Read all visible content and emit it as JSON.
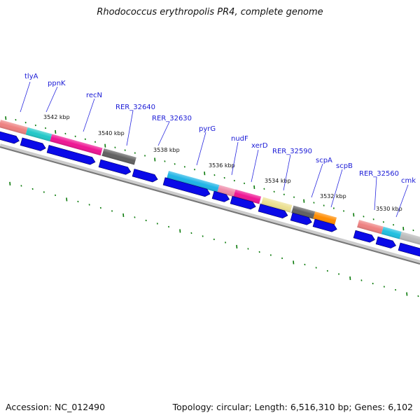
{
  "title": "Rhodococcus erythropolis PR4, complete genome",
  "footer": {
    "accession": "Accession: NC_012490",
    "stats": "Topology: circular; Length: 6,516,310 bp; Genes: 6,102"
  },
  "kbp_marks": [
    "3542 kbp",
    "3540 kbp",
    "3538 kbp",
    "3536 kbp",
    "3534 kbp",
    "3532 kbp",
    "3530 kbp"
  ],
  "genes": [
    {
      "name": "tlyA",
      "color": "#ee8080"
    },
    {
      "name": "ppnK",
      "color": "#20c8c8"
    },
    {
      "name": "recN",
      "color": "#ee1493"
    },
    {
      "name": "RER_32640",
      "color": "#606060"
    },
    {
      "name": "RER_32630",
      "color": "#101088"
    },
    {
      "name": "pyrG",
      "color": "#1eb4e6"
    },
    {
      "name": "nudF",
      "color": "#ee1493"
    },
    {
      "name": "xerD",
      "color": "#ee1493"
    },
    {
      "name": "RER_32590",
      "color": "#ece090"
    },
    {
      "name": "scpA",
      "color": "#606060"
    },
    {
      "name": "scpB",
      "color": "#ff8c00"
    },
    {
      "name": "RER_32560",
      "color": "#ee8080"
    },
    {
      "name": "cmk",
      "color": "#20c0e0"
    }
  ],
  "colors": {
    "cds_arrow": "#0a0ae8",
    "tick": "#0a7a0a",
    "backbone": "#888888"
  }
}
